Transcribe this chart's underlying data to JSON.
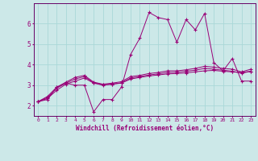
{
  "xlabel": "Windchill (Refroidissement éolien,°C)",
  "bg_color": "#cce8e8",
  "line_color": "#990077",
  "x_values": [
    0,
    1,
    2,
    3,
    4,
    5,
    6,
    7,
    8,
    9,
    10,
    11,
    12,
    13,
    14,
    15,
    16,
    17,
    18,
    19,
    20,
    21,
    22,
    23
  ],
  "line1": [
    2.2,
    2.3,
    2.9,
    3.1,
    3.0,
    3.0,
    1.7,
    2.3,
    2.3,
    2.9,
    4.5,
    5.3,
    6.55,
    6.3,
    6.2,
    5.1,
    6.2,
    5.7,
    6.5,
    4.1,
    3.7,
    4.3,
    3.2,
    3.2
  ],
  "line2": [
    2.2,
    2.35,
    2.75,
    3.05,
    3.2,
    3.35,
    3.1,
    3.0,
    3.05,
    3.1,
    3.3,
    3.38,
    3.45,
    3.5,
    3.55,
    3.57,
    3.6,
    3.65,
    3.7,
    3.72,
    3.68,
    3.65,
    3.62,
    3.68
  ],
  "line3": [
    2.2,
    2.4,
    2.85,
    3.1,
    3.3,
    3.42,
    3.12,
    3.02,
    3.05,
    3.12,
    3.35,
    3.42,
    3.5,
    3.55,
    3.62,
    3.63,
    3.68,
    3.73,
    3.82,
    3.78,
    3.73,
    3.68,
    3.58,
    3.68
  ],
  "line4": [
    2.2,
    2.45,
    2.9,
    3.15,
    3.38,
    3.48,
    3.15,
    3.05,
    3.1,
    3.17,
    3.42,
    3.48,
    3.57,
    3.62,
    3.7,
    3.7,
    3.75,
    3.82,
    3.92,
    3.88,
    3.82,
    3.78,
    3.65,
    3.78
  ],
  "ylim": [
    1.5,
    7.0
  ],
  "yticks": [
    2,
    3,
    4,
    5,
    6
  ],
  "grid_color": "#aad8d8",
  "spine_color": "#660066"
}
